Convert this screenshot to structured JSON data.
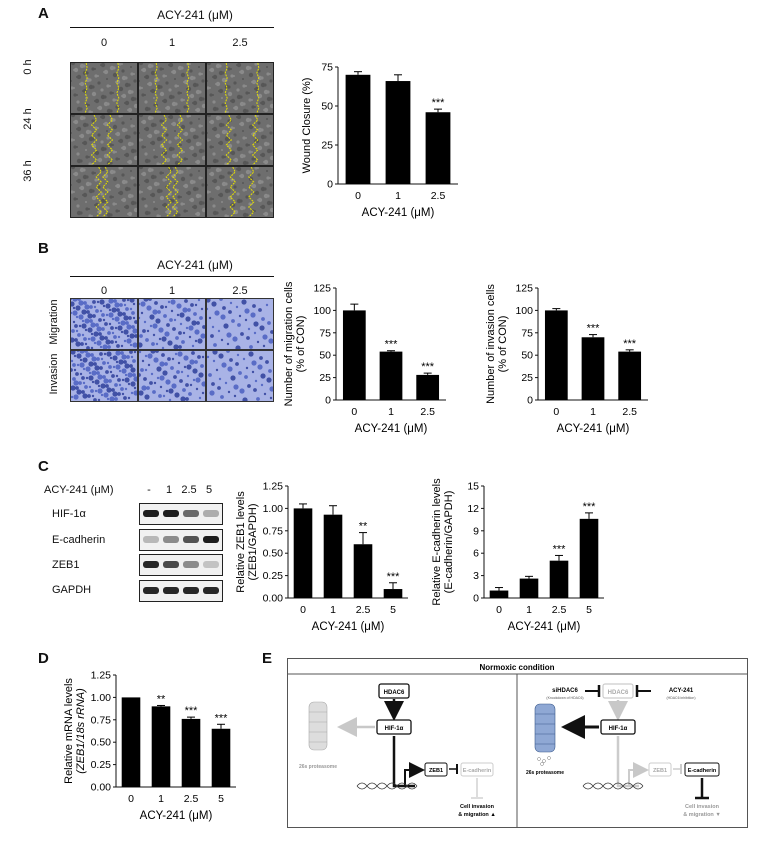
{
  "panels": {
    "a": "A",
    "b": "B",
    "c": "C",
    "d": "D",
    "e": "E"
  },
  "drug_label": "ACY-241 (μM)",
  "micro_doses": [
    "0",
    "1",
    "2.5"
  ],
  "wound_times": [
    "0 h",
    "24 h",
    "36 h"
  ],
  "transwell_rows": [
    "Migration",
    "Invasion"
  ],
  "western": {
    "dose_header": "ACY-241 (μM)",
    "doses": [
      "-",
      "1",
      "2.5",
      "5"
    ],
    "proteins": [
      "HIF-1α",
      "E-cadherin",
      "ZEB1",
      "GAPDH"
    ],
    "intensity": {
      "HIF-1α": [
        0.95,
        0.95,
        0.6,
        0.3
      ],
      "E-cadherin": [
        0.25,
        0.45,
        0.7,
        0.95
      ],
      "ZEB1": [
        0.9,
        0.75,
        0.45,
        0.2
      ],
      "GAPDH": [
        0.9,
        0.9,
        0.9,
        0.9
      ]
    }
  },
  "chart_data": [
    {
      "id": "wound",
      "type": "bar",
      "categories": [
        "0",
        "1",
        "2.5"
      ],
      "values": [
        70,
        66,
        46
      ],
      "errors": [
        2,
        4,
        2
      ],
      "sig": [
        "",
        "",
        "***"
      ],
      "ylabel": "Wound Closure (%)",
      "xlabel": "ACY-241 (μM)",
      "ylim": [
        0,
        75
      ],
      "yticks": [
        "0",
        "25",
        "50",
        "75"
      ]
    },
    {
      "id": "migration",
      "type": "bar",
      "categories": [
        "0",
        "1",
        "2.5"
      ],
      "values": [
        100,
        54,
        28
      ],
      "errors": [
        7,
        1,
        2
      ],
      "sig": [
        "",
        "***",
        "***"
      ],
      "ylabel": "Number of migration cells",
      "ylabel2": "(% of CON)",
      "xlabel": "ACY-241 (μM)",
      "ylim": [
        0,
        125
      ],
      "yticks": [
        "0",
        "25",
        "50",
        "75",
        "100",
        "125"
      ]
    },
    {
      "id": "invasion",
      "type": "bar",
      "categories": [
        "0",
        "1",
        "2.5"
      ],
      "values": [
        100,
        70,
        54
      ],
      "errors": [
        2,
        3,
        2
      ],
      "sig": [
        "",
        "***",
        "***"
      ],
      "ylabel": "Number of invasion cells",
      "ylabel2": "(% of CON)",
      "xlabel": "ACY-241 (μM)",
      "ylim": [
        0,
        125
      ],
      "yticks": [
        "0",
        "25",
        "50",
        "75",
        "100",
        "125"
      ]
    },
    {
      "id": "zeb1",
      "type": "bar",
      "categories": [
        "0",
        "1",
        "2.5",
        "5"
      ],
      "values": [
        1.0,
        0.93,
        0.6,
        0.1
      ],
      "errors": [
        0.05,
        0.1,
        0.13,
        0.07
      ],
      "sig": [
        "",
        "",
        "**",
        "***"
      ],
      "ylabel": "Relative ZEB1 levels",
      "ylabel2": "(ZEB1/GAPDH)",
      "xlabel": "ACY-241 (μM)",
      "ylim": [
        0,
        1.25
      ],
      "yticks": [
        "0.00",
        "0.25",
        "0.50",
        "0.75",
        "1.00",
        "1.25"
      ]
    },
    {
      "id": "ecad",
      "type": "bar",
      "categories": [
        "0",
        "1",
        "2.5",
        "5"
      ],
      "values": [
        1.0,
        2.6,
        5.0,
        10.6
      ],
      "errors": [
        0.4,
        0.3,
        0.7,
        0.8
      ],
      "sig": [
        "",
        "",
        "***",
        "***"
      ],
      "ylabel": "Relative E-cadherin levels",
      "ylabel2": "(E-cadherin/GAPDH)",
      "xlabel": "ACY-241 (μM)",
      "ylim": [
        0,
        15
      ],
      "yticks": [
        "0",
        "3",
        "6",
        "9",
        "12",
        "15"
      ]
    },
    {
      "id": "mrna",
      "type": "bar",
      "categories": [
        "0",
        "1",
        "2.5",
        "5"
      ],
      "values": [
        1.0,
        0.9,
        0.76,
        0.65
      ],
      "errors": [
        0.0,
        0.01,
        0.02,
        0.05
      ],
      "sig": [
        "",
        "**",
        "***",
        "***"
      ],
      "ylabel": "Relative mRNA levels",
      "ylabel2": "(ZEB1/18s rRNA)",
      "xlabel": "ACY-241 (μM)",
      "ylim": [
        0,
        1.25
      ],
      "yticks": [
        "0.00",
        "0.25",
        "0.50",
        "0.75",
        "1.00",
        "1.25"
      ]
    }
  ],
  "diagram": {
    "title": "Normoxic condition",
    "left": {
      "hdac6": "HDAC6",
      "hif": "HIF-1α",
      "zeb1": "ZEB1",
      "ecad": "E-cadherin",
      "proteasome": "26s proteasome",
      "outcome1": "Cell invasion",
      "outcome2": "& migration ▲"
    },
    "right": {
      "sihdac6": "siHDAC6",
      "sihdac6_note": "(Knockdown of HDAC6)",
      "hdac6": "HDAC6",
      "acy": "ACY-241",
      "acy_note": "(HDAC6 inhibition)",
      "hif": "HIF-1α",
      "zeb1": "ZEB1",
      "ecad": "E-cadherin",
      "proteasome": "26s proteasome",
      "outcome1": "Cell invasion",
      "outcome2": "& migration ▼"
    }
  }
}
